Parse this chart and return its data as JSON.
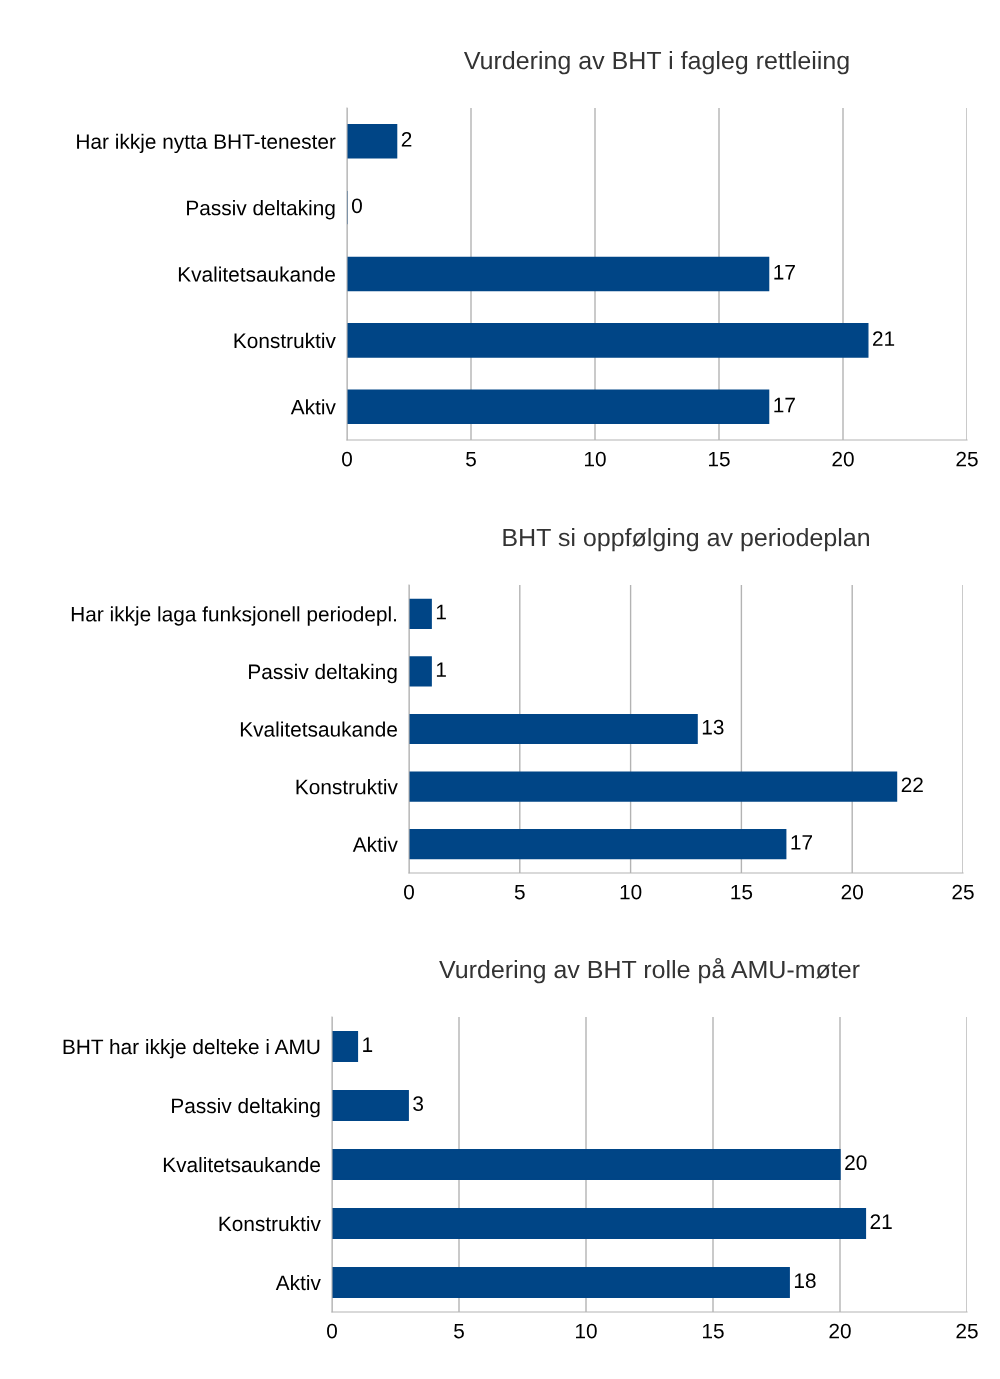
{
  "chart_data": [
    {
      "type": "bar",
      "orientation": "horizontal",
      "title": "Vurdering av BHT i fagleg rettleiing",
      "categories": [
        "Har ikkje nytta BHT-tenester",
        "Passiv deltaking",
        "Kvalitetsaukande",
        "Konstruktiv",
        "Aktiv"
      ],
      "values": [
        2,
        0,
        17,
        21,
        17
      ],
      "color": "#004586",
      "xlim": [
        0,
        25
      ],
      "xticks": [
        0,
        5,
        10,
        15,
        20,
        25
      ],
      "grid": "x",
      "data_labels": true,
      "legend": false
    },
    {
      "type": "bar",
      "orientation": "horizontal",
      "title": "BHT si oppfølging av periodeplan",
      "categories": [
        "Har ikkje laga funksjonell periodepl.",
        "Passiv deltaking",
        "Kvalitetsaukande",
        "Konstruktiv",
        "Aktiv"
      ],
      "values": [
        1,
        1,
        13,
        22,
        17
      ],
      "color": "#004586",
      "xlim": [
        0,
        25
      ],
      "xticks": [
        0,
        5,
        10,
        15,
        20,
        25
      ],
      "grid": "x",
      "data_labels": true,
      "legend": false
    },
    {
      "type": "bar",
      "orientation": "horizontal",
      "title": "Vurdering av BHT rolle på AMU-møter",
      "categories": [
        "BHT har ikkje delteke i AMU",
        "Passiv deltaking",
        "Kvalitetsaukande",
        "Konstruktiv",
        "Aktiv"
      ],
      "values": [
        1,
        3,
        20,
        21,
        18
      ],
      "color": "#004586",
      "xlim": [
        0,
        25
      ],
      "xticks": [
        0,
        5,
        10,
        15,
        20,
        25
      ],
      "grid": "x",
      "data_labels": true,
      "legend": false
    }
  ]
}
